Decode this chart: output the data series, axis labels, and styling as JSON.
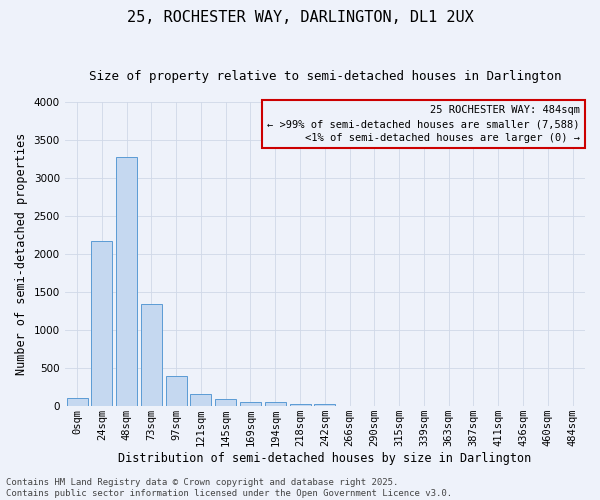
{
  "title": "25, ROCHESTER WAY, DARLINGTON, DL1 2UX",
  "subtitle": "Size of property relative to semi-detached houses in Darlington",
  "xlabel": "Distribution of semi-detached houses by size in Darlington",
  "ylabel": "Number of semi-detached properties",
  "footer_line1": "Contains HM Land Registry data © Crown copyright and database right 2025.",
  "footer_line2": "Contains public sector information licensed under the Open Government Licence v3.0.",
  "legend_title": "25 ROCHESTER WAY: 484sqm",
  "legend_line1": "← >99% of semi-detached houses are smaller (7,588)",
  "legend_line2": "<1% of semi-detached houses are larger (0) →",
  "bin_labels": [
    "0sqm",
    "24sqm",
    "48sqm",
    "73sqm",
    "97sqm",
    "121sqm",
    "145sqm",
    "169sqm",
    "194sqm",
    "218sqm",
    "242sqm",
    "266sqm",
    "290sqm",
    "315sqm",
    "339sqm",
    "363sqm",
    "387sqm",
    "411sqm",
    "436sqm",
    "460sqm",
    "484sqm"
  ],
  "bar_values": [
    110,
    2180,
    3280,
    1350,
    400,
    155,
    90,
    50,
    50,
    30,
    25,
    0,
    0,
    0,
    0,
    0,
    0,
    0,
    0,
    0,
    0
  ],
  "bar_color": "#c5d8f0",
  "bar_edge_color": "#5b9bd5",
  "ylim": [
    0,
    4000
  ],
  "yticks": [
    0,
    500,
    1000,
    1500,
    2000,
    2500,
    3000,
    3500,
    4000
  ],
  "grid_color": "#d0d8e8",
  "bg_color": "#eef2fa",
  "legend_box_color": "#cc0000",
  "title_fontsize": 11,
  "subtitle_fontsize": 9,
  "axis_label_fontsize": 8.5,
  "tick_fontsize": 7.5,
  "footer_fontsize": 6.5,
  "legend_fontsize": 7.5
}
